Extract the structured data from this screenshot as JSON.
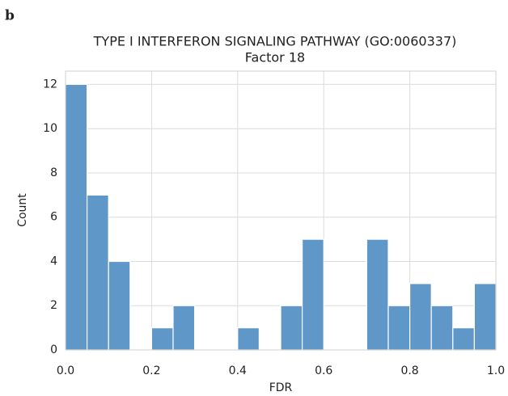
{
  "chart_data": {
    "type": "histogram",
    "panel_label": "b",
    "title": "TYPE I INTERFERON SIGNALING PATHWAY (GO:0060337)",
    "subtitle": "Factor 18",
    "x_label": "FDR",
    "y_label": "Count",
    "bins": [
      0,
      0.05,
      0.1,
      0.15,
      0.2,
      0.25,
      0.3,
      0.35,
      0.4,
      0.45,
      0.5,
      0.55,
      0.6,
      0.65,
      0.7,
      0.75,
      0.8,
      0.85,
      0.9,
      0.95,
      1
    ],
    "counts": [
      12,
      7,
      4,
      0,
      1,
      2,
      0,
      0,
      1,
      0,
      2,
      5,
      0,
      0,
      5,
      2,
      3,
      2,
      1,
      3
    ],
    "color": "#5f97c9",
    "xlim": [
      0,
      1
    ],
    "ylim": [
      0,
      12.6
    ],
    "xticks": [
      {
        "value": 0,
        "label": "0.0"
      },
      0.2,
      0.4,
      0.6,
      0.8,
      {
        "value": 1,
        "label": "1.0"
      }
    ],
    "yticks": [
      0,
      2,
      4,
      6,
      8,
      10,
      12
    ],
    "grid": true
  }
}
